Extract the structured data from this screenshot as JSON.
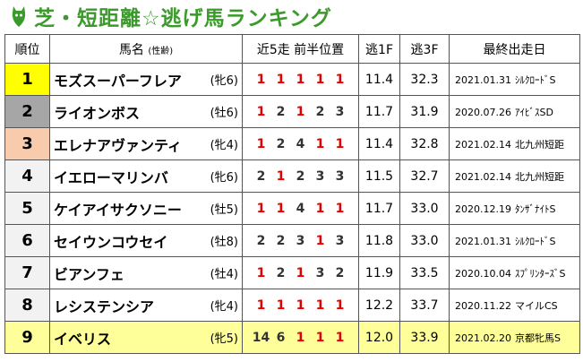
{
  "header": {
    "title": "芝・短距離☆逃げ馬ランキング"
  },
  "table": {
    "columns": [
      "順位",
      "馬名",
      "(性齢)",
      "近5走 前半位置",
      "逃1F",
      "逃3F",
      "最終出走日"
    ],
    "rows": [
      {
        "rank": "1",
        "name": "モズスーパーフレア",
        "sex_age": "(牝6)",
        "positions": [
          1,
          1,
          1,
          1,
          1
        ],
        "f1": "11.4",
        "f3": "32.3",
        "date": "2021.01.31",
        "race": "ｼﾙｸﾛｰﾄﾞS"
      },
      {
        "rank": "2",
        "name": "ライオンボス",
        "sex_age": "(牡6)",
        "positions": [
          1,
          2,
          1,
          2,
          3
        ],
        "f1": "11.7",
        "f3": "31.9",
        "date": "2020.07.26",
        "race": "ｱｲﾋﾞｽSD"
      },
      {
        "rank": "3",
        "name": "エレナアヴァンティ",
        "sex_age": "(牝4)",
        "positions": [
          1,
          2,
          4,
          1,
          1
        ],
        "f1": "11.4",
        "f3": "32.8",
        "date": "2021.02.14",
        "race": "北九州短距"
      },
      {
        "rank": "4",
        "name": "イエローマリンバ",
        "sex_age": "(牝6)",
        "positions": [
          2,
          1,
          2,
          3,
          3
        ],
        "f1": "11.5",
        "f3": "32.7",
        "date": "2021.02.14",
        "race": "北九州短距"
      },
      {
        "rank": "5",
        "name": "ケイアイサクソニー",
        "sex_age": "(牡5)",
        "positions": [
          1,
          1,
          4,
          1,
          1
        ],
        "f1": "11.7",
        "f3": "33.0",
        "date": "2020.12.19",
        "race": "ﾀﾝｻﾞﾅｲﾄS"
      },
      {
        "rank": "6",
        "name": "セイウンコウセイ",
        "sex_age": "(牡8)",
        "positions": [
          2,
          2,
          3,
          1,
          3
        ],
        "f1": "11.8",
        "f3": "33.0",
        "date": "2021.01.31",
        "race": "ｼﾙｸﾛｰﾄﾞS"
      },
      {
        "rank": "7",
        "name": "ビアンフェ",
        "sex_age": "(牡4)",
        "positions": [
          1,
          2,
          1,
          3,
          2
        ],
        "f1": "11.9",
        "f3": "33.5",
        "date": "2020.10.04",
        "race": "ｽﾌﾟﾘﾝﾀｰｽﾞS"
      },
      {
        "rank": "8",
        "name": "レシステンシア",
        "sex_age": "(牝4)",
        "positions": [
          1,
          1,
          1,
          1,
          1
        ],
        "f1": "12.2",
        "f3": "33.7",
        "date": "2020.11.22",
        "race": "マイルCS"
      },
      {
        "rank": "9",
        "name": "イベリス",
        "sex_age": "(牝5)",
        "positions": [
          14,
          6,
          1,
          1,
          1
        ],
        "f1": "12.0",
        "f3": "33.9",
        "date": "2021.02.20",
        "race": "京都牝馬S"
      }
    ]
  }
}
